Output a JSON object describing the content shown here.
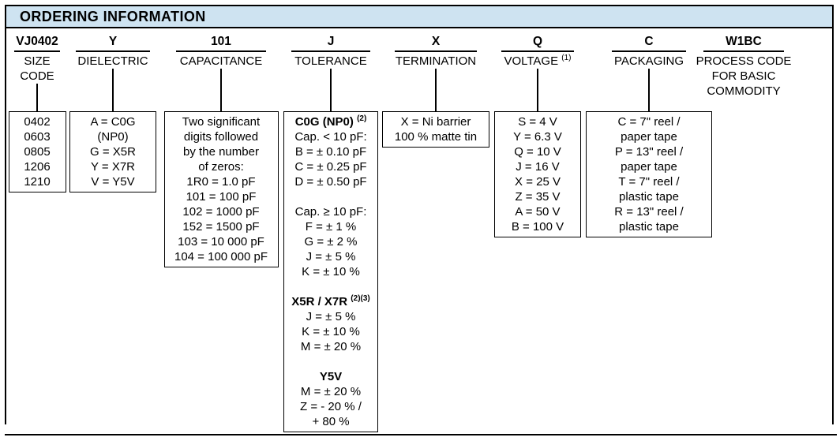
{
  "header": {
    "title": "ORDERING INFORMATION"
  },
  "columns": [
    {
      "code": "VJ0402",
      "label_lines": [
        "SIZE",
        "CODE"
      ],
      "box_lines": [
        "0402",
        "0603",
        "0805",
        "1206",
        "1210"
      ]
    },
    {
      "code": "Y",
      "label_lines": [
        "DIELECTRIC"
      ],
      "box_lines": [
        "A = C0G",
        "(NP0)",
        "G = X5R",
        "Y = X7R",
        "V = Y5V"
      ]
    },
    {
      "code": "101",
      "label_lines": [
        "CAPACITANCE"
      ],
      "box_lines": [
        "Two significant",
        "digits followed",
        "by the number",
        "of zeros:",
        "1R0 = 1.0 pF",
        "101 = 100 pF",
        "102 = 1000 pF",
        "152 = 1500 pF",
        "103 = 10 000 pF",
        "104 = 100 000 pF"
      ]
    },
    {
      "code": "J",
      "label_lines": [
        "TOLERANCE"
      ],
      "groups": [
        {
          "heading": "C0G (NP0)",
          "sup": "(2)",
          "lines": [
            "Cap. < 10 pF:",
            "B = ± 0.10 pF",
            "C = ± 0.25 pF",
            "D = ± 0.50 pF"
          ]
        },
        {
          "lines": [
            "Cap. ≥ 10 pF:",
            "F = ± 1 %",
            "G = ± 2 %",
            "J = ± 5 %",
            "K = ± 10 %"
          ]
        },
        {
          "heading": "X5R / X7R",
          "sup": "(2)(3)",
          "lines": [
            "J = ± 5 %",
            "K = ± 10 %",
            "M = ± 20 %"
          ]
        },
        {
          "heading": "Y5V",
          "lines": [
            "M = ± 20 %",
            "Z = - 20 % /",
            "+ 80 %"
          ]
        }
      ]
    },
    {
      "code": "X",
      "label_lines": [
        "TERMINATION"
      ],
      "box_lines": [
        "X = Ni barrier",
        "100 % matte tin"
      ]
    },
    {
      "code": "Q",
      "label": "VOLTAGE",
      "label_sup": "(1)",
      "box_lines": [
        "S = 4 V",
        "Y = 6.3 V",
        "Q = 10 V",
        "J = 16 V",
        "X = 25 V",
        "Z = 35 V",
        "A = 50 V",
        "B = 100 V"
      ]
    },
    {
      "code": "C",
      "label_lines": [
        "PACKAGING"
      ],
      "box_lines": [
        "C = 7\" reel /",
        "paper tape",
        "P = 13\" reel /",
        "paper tape",
        "T = 7\" reel /",
        "plastic tape",
        "R = 13\" reel /",
        "plastic tape"
      ]
    },
    {
      "code": "W1BC",
      "label_lines": [
        "PROCESS CODE",
        "FOR BASIC",
        "COMMODITY"
      ]
    }
  ],
  "colors": {
    "band_background": "#cee3f1",
    "line": "#000000"
  }
}
